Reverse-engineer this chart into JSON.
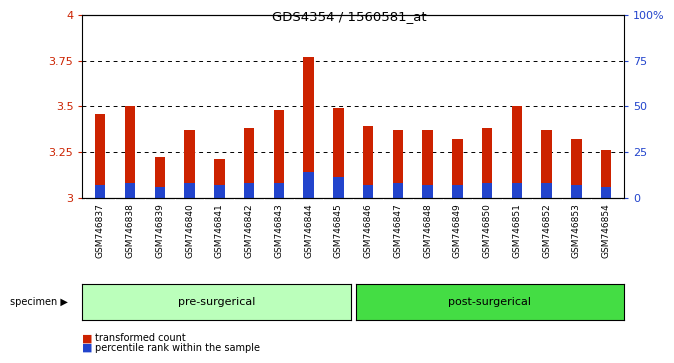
{
  "title": "GDS4354 / 1560581_at",
  "samples": [
    "GSM746837",
    "GSM746838",
    "GSM746839",
    "GSM746840",
    "GSM746841",
    "GSM746842",
    "GSM746843",
    "GSM746844",
    "GSM746845",
    "GSM746846",
    "GSM746847",
    "GSM746848",
    "GSM746849",
    "GSM746850",
    "GSM746851",
    "GSM746852",
    "GSM746853",
    "GSM746854"
  ],
  "red_values": [
    3.46,
    3.5,
    3.22,
    3.37,
    3.21,
    3.38,
    3.48,
    3.77,
    3.49,
    3.39,
    3.37,
    3.37,
    3.32,
    3.38,
    3.5,
    3.37,
    3.32,
    3.26
  ],
  "blue_percentiles": [
    7,
    8,
    6,
    8,
    7,
    8,
    8,
    14,
    11,
    7,
    8,
    7,
    7,
    8,
    8,
    8,
    7,
    6
  ],
  "pre_surgical_count": 9,
  "post_surgical_count": 9,
  "y_min": 3.0,
  "y_max": 4.0,
  "y_ticks": [
    3.0,
    3.25,
    3.5,
    3.75,
    4.0
  ],
  "y2_ticks": [
    0,
    25,
    50,
    75,
    100
  ],
  "bar_color_red": "#cc2200",
  "bar_color_blue": "#2244cc",
  "pre_color": "#bbffbb",
  "post_color": "#44dd44",
  "tick_bg_color": "#c8c8c8",
  "legend_red": "transformed count",
  "legend_blue": "percentile rank within the sample",
  "specimen_label": "specimen",
  "pre_label": "pre-surgerical",
  "post_label": "post-surgerical"
}
